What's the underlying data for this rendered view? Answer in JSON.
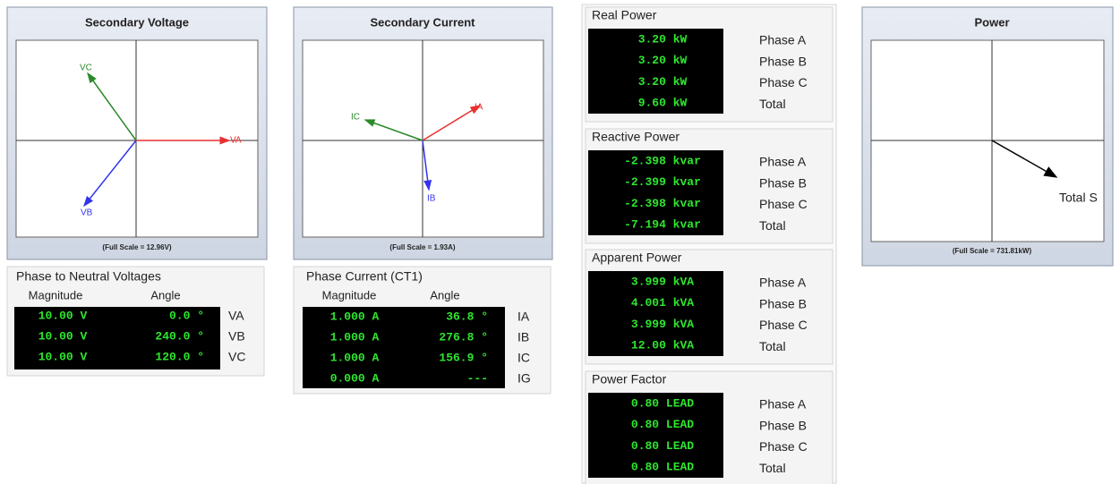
{
  "voltage_phasor": {
    "title": "Secondary Voltage",
    "vectors": [
      "VA",
      "VB",
      "VC"
    ],
    "scale": "(Full Scale = 12.96V)"
  },
  "current_phasor": {
    "title": "Secondary Current",
    "vectors": [
      "IA",
      "IB",
      "IC"
    ],
    "scale": "(Full Scale = 1.93A)"
  },
  "power_phasor": {
    "title": "Power",
    "vectors": [
      "Total S"
    ],
    "scale": "(Full Scale = 731.81kW)"
  },
  "voltages": {
    "title": "Phase to Neutral Voltages",
    "headers": [
      "Magnitude",
      "Angle"
    ],
    "rows": [
      [
        "10.00 V",
        "0.0 °",
        "VA"
      ],
      [
        "10.00 V",
        "240.0 °",
        "VB"
      ],
      [
        "10.00 V",
        "120.0 °",
        "VC"
      ]
    ]
  },
  "currents": {
    "title": "Phase Current (CT1)",
    "headers": [
      "Magnitude",
      "Angle"
    ],
    "rows": [
      [
        "1.000 A",
        "36.8 °",
        "IA"
      ],
      [
        "1.000 A",
        "276.8 °",
        "IB"
      ],
      [
        "1.000 A",
        "156.9 °",
        "IC"
      ],
      [
        "0.000 A",
        "---",
        "IG"
      ]
    ]
  },
  "power_groups": [
    {
      "title": "Real Power",
      "rows": [
        [
          "3.20 kW",
          "Phase A"
        ],
        [
          "3.20 kW",
          "Phase B"
        ],
        [
          "3.20 kW",
          "Phase C"
        ],
        [
          "9.60 kW",
          "Total"
        ]
      ]
    },
    {
      "title": "Reactive Power",
      "rows": [
        [
          "-2.398 kvar",
          "Phase A"
        ],
        [
          "-2.399 kvar",
          "Phase B"
        ],
        [
          "-2.398 kvar",
          "Phase C"
        ],
        [
          "-7.194 kvar",
          "Total"
        ]
      ]
    },
    {
      "title": "Apparent Power",
      "rows": [
        [
          "3.999 kVA",
          "Phase A"
        ],
        [
          "4.001 kVA",
          "Phase B"
        ],
        [
          "3.999 kVA",
          "Phase C"
        ],
        [
          "12.00 kVA",
          "Total"
        ]
      ]
    },
    {
      "title": "Power Factor",
      "rows": [
        [
          "0.80 LEAD",
          "Phase A"
        ],
        [
          "0.80 LEAD",
          "Phase B"
        ],
        [
          "0.80 LEAD",
          "Phase C"
        ],
        [
          "0.80 LEAD",
          "Total"
        ]
      ]
    }
  ]
}
